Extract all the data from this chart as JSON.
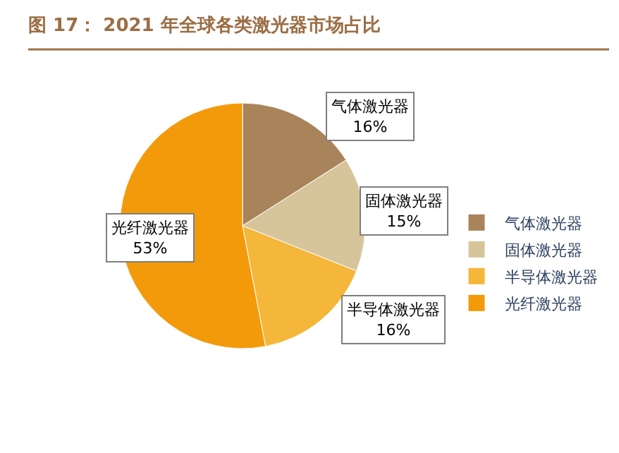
{
  "chart_data": {
    "type": "pie",
    "title": "图 17： 2021 年全球各类激光器市场占比",
    "categories": [
      "气体激光器",
      "固体激光器",
      "半导体激光器",
      "光纤激光器"
    ],
    "values": [
      16,
      15,
      16,
      53
    ],
    "colors": [
      "#a9835a",
      "#d6c59b",
      "#f4b73a",
      "#f39a0a"
    ],
    "value_labels": [
      "16%",
      "15%",
      "16%",
      "53%"
    ],
    "legend": "right"
  }
}
